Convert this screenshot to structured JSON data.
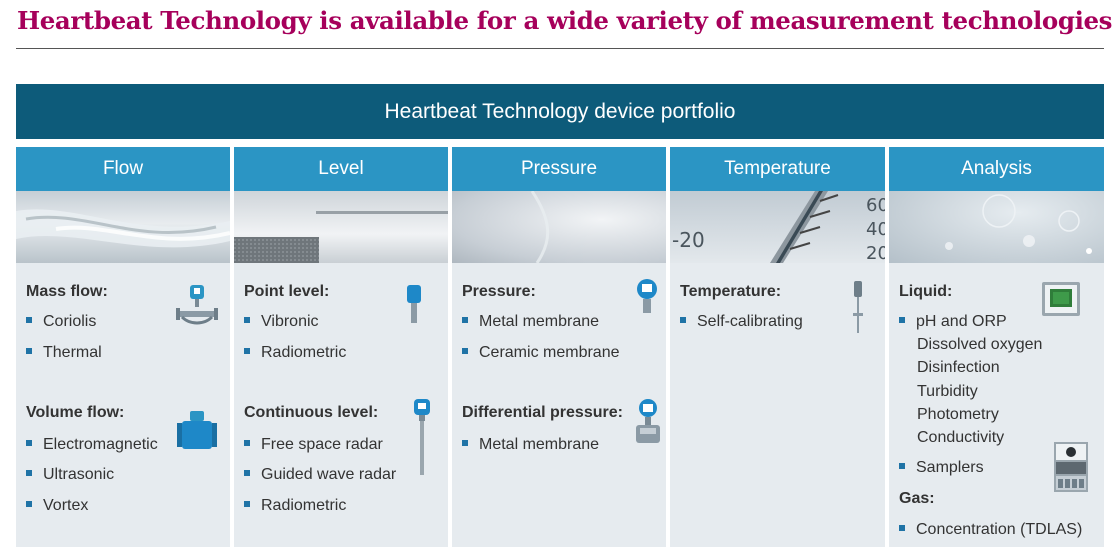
{
  "title": "Heartbeat Technology is available for a wide variety of measurement technologies",
  "banner": "Heartbeat Technology device portfolio",
  "colors": {
    "title": "#a6005b",
    "banner": "#0d5b7a",
    "header": "#2b95c4",
    "body": "#e6ebef",
    "bullet": "#1f73a6"
  },
  "columns": [
    {
      "header": "Flow",
      "groups": [
        {
          "label": "Mass flow:",
          "items": [
            "Coriolis",
            "Thermal"
          ]
        },
        {
          "label": "Volume flow:",
          "items": [
            "Electromagnetic",
            "Ultrasonic",
            "Vortex"
          ]
        }
      ]
    },
    {
      "header": "Level",
      "groups": [
        {
          "label": "Point level:",
          "items": [
            "Vibronic",
            "Radiometric"
          ]
        },
        {
          "label": "Continuous level:",
          "items": [
            "Free space radar",
            "Guided wave radar",
            "Radiometric"
          ]
        }
      ]
    },
    {
      "header": "Pressure",
      "groups": [
        {
          "label": "Pressure:",
          "items": [
            "Metal membrane",
            "Ceramic membrane"
          ]
        },
        {
          "label": "Differential pressure:",
          "items": [
            "Metal membrane"
          ]
        }
      ]
    },
    {
      "header": "Temperature",
      "groups": [
        {
          "label": "Temperature:",
          "items": [
            "Self-calibrating"
          ]
        }
      ]
    },
    {
      "header": "Analysis",
      "groups": [
        {
          "label": "Liquid:",
          "items": [
            "pH and ORP",
            "Samplers"
          ],
          "subitems": [
            "Dissolved oxygen",
            "Disinfection",
            "Turbidity",
            "Photometry",
            "Conductivity"
          ]
        },
        {
          "label": "Gas:",
          "items": [
            "Concentration (TDLAS)"
          ]
        }
      ]
    }
  ],
  "photo_text": {
    "t1": "-20",
    "t2": "60",
    "t3": "40",
    "t4": "20"
  }
}
